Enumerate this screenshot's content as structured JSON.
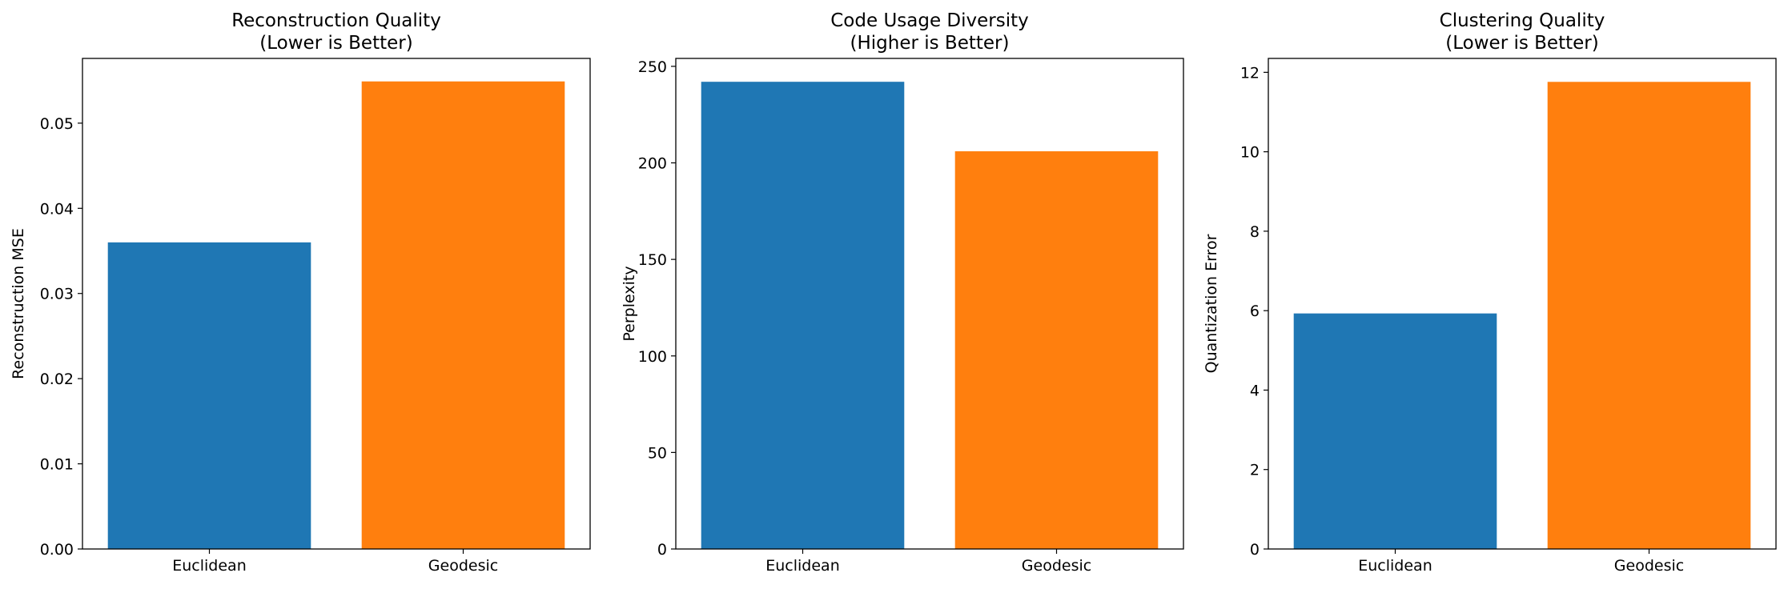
{
  "chart_data": [
    {
      "type": "bar",
      "title_line1": "Reconstruction Quality",
      "title_line2": "(Lower is Better)",
      "xlabel": "",
      "ylabel": "Reconstruction MSE",
      "categories": [
        "Euclidean",
        "Geodesic"
      ],
      "values": [
        0.036,
        0.0549
      ],
      "colors": [
        "#1f77b4",
        "#ff7f0e"
      ],
      "ylim": [
        0,
        0.0576
      ],
      "yticks": [
        0,
        0.01,
        0.02,
        0.03,
        0.04,
        0.05
      ],
      "ytick_labels": [
        "0.00",
        "0.01",
        "0.02",
        "0.03",
        "0.04",
        "0.05"
      ]
    },
    {
      "type": "bar",
      "title_line1": "Code Usage Diversity",
      "title_line2": "(Higher is Better)",
      "xlabel": "",
      "ylabel": "Perplexity",
      "categories": [
        "Euclidean",
        "Geodesic"
      ],
      "values": [
        242,
        206
      ],
      "colors": [
        "#1f77b4",
        "#ff7f0e"
      ],
      "ylim": [
        0,
        254.1
      ],
      "yticks": [
        0,
        50,
        100,
        150,
        200,
        250
      ],
      "ytick_labels": [
        "0",
        "50",
        "100",
        "150",
        "200",
        "250"
      ]
    },
    {
      "type": "bar",
      "title_line1": "Clustering Quality",
      "title_line2": "(Lower is Better)",
      "xlabel": "",
      "ylabel": "Quantization Error",
      "categories": [
        "Euclidean",
        "Geodesic"
      ],
      "values": [
        5.93,
        11.76
      ],
      "colors": [
        "#1f77b4",
        "#ff7f0e"
      ],
      "ylim": [
        0,
        12.35
      ],
      "yticks": [
        0,
        2,
        4,
        6,
        8,
        10,
        12
      ],
      "ytick_labels": [
        "0",
        "2",
        "4",
        "6",
        "8",
        "10",
        "12"
      ]
    }
  ]
}
